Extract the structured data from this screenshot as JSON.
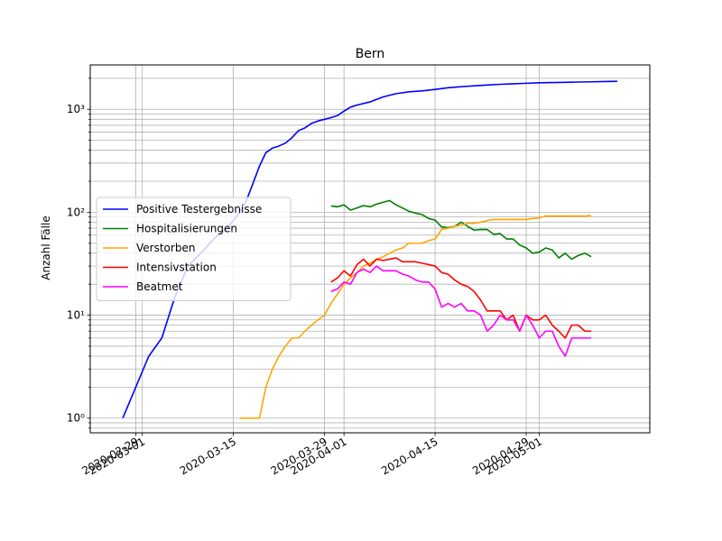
{
  "chart_data": {
    "type": "line",
    "title": "Bern",
    "xlabel": "",
    "ylabel": "Anzahl Fälle",
    "yscale": "log",
    "ylim": [
      0.72,
      2700
    ],
    "xlim": [
      "2020-02-22",
      "2020-05-18"
    ],
    "grid": true,
    "legend_position": "center-left",
    "x_ticks": [
      {
        "date": "2020-02-29",
        "label": "2020-02-29"
      },
      {
        "date": "2020-03-01",
        "label": "2020-03-01"
      },
      {
        "date": "2020-03-15",
        "label": "2020-03-15"
      },
      {
        "date": "2020-03-29",
        "label": "2020-03-29"
      },
      {
        "date": "2020-04-01",
        "label": "2020-04-01"
      },
      {
        "date": "2020-04-15",
        "label": "2020-04-15"
      },
      {
        "date": "2020-04-29",
        "label": "2020-04-29"
      },
      {
        "date": "2020-05-01",
        "label": "2020-05-01"
      }
    ],
    "y_ticks": [
      {
        "value": 1,
        "label": "10⁰"
      },
      {
        "value": 10,
        "label": "10¹"
      },
      {
        "value": 100,
        "label": "10²"
      },
      {
        "value": 1000,
        "label": "10³"
      }
    ],
    "series": [
      {
        "name": "Positive Testergebnisse",
        "color": "#0000ff",
        "x": [
          "2020-02-27",
          "2020-02-29",
          "2020-03-02",
          "2020-03-04",
          "2020-03-06",
          "2020-03-08",
          "2020-03-10",
          "2020-03-12",
          "2020-03-14",
          "2020-03-16",
          "2020-03-17",
          "2020-03-18",
          "2020-03-19",
          "2020-03-20",
          "2020-03-21",
          "2020-03-22",
          "2020-03-23",
          "2020-03-24",
          "2020-03-25",
          "2020-03-26",
          "2020-03-27",
          "2020-03-28",
          "2020-03-29",
          "2020-03-30",
          "2020-03-31",
          "2020-04-01",
          "2020-04-02",
          "2020-04-03",
          "2020-04-05",
          "2020-04-07",
          "2020-04-09",
          "2020-04-11",
          "2020-04-13",
          "2020-04-15",
          "2020-04-17",
          "2020-04-19",
          "2020-04-21",
          "2020-04-23",
          "2020-04-25",
          "2020-04-27",
          "2020-04-29",
          "2020-05-01",
          "2020-05-03",
          "2020-05-05",
          "2020-05-07",
          "2020-05-09",
          "2020-05-11",
          "2020-05-13"
        ],
        "values": [
          1,
          2,
          4,
          6,
          15,
          30,
          40,
          55,
          70,
          100,
          130,
          190,
          280,
          380,
          420,
          440,
          470,
          530,
          620,
          660,
          730,
          770,
          800,
          830,
          870,
          960,
          1050,
          1100,
          1180,
          1320,
          1420,
          1480,
          1510,
          1560,
          1620,
          1660,
          1690,
          1720,
          1750,
          1770,
          1790,
          1810,
          1820,
          1830,
          1840,
          1850,
          1860,
          1870
        ]
      },
      {
        "name": "Hospitalisierungen",
        "color": "#008000",
        "x": [
          "2020-03-30",
          "2020-03-31",
          "2020-04-01",
          "2020-04-02",
          "2020-04-03",
          "2020-04-04",
          "2020-04-05",
          "2020-04-06",
          "2020-04-07",
          "2020-04-08",
          "2020-04-09",
          "2020-04-10",
          "2020-04-11",
          "2020-04-12",
          "2020-04-13",
          "2020-04-14",
          "2020-04-15",
          "2020-04-16",
          "2020-04-17",
          "2020-04-18",
          "2020-04-19",
          "2020-04-20",
          "2020-04-21",
          "2020-04-22",
          "2020-04-23",
          "2020-04-24",
          "2020-04-25",
          "2020-04-26",
          "2020-04-27",
          "2020-04-28",
          "2020-04-29",
          "2020-04-30",
          "2020-05-01",
          "2020-05-02",
          "2020-05-03",
          "2020-05-04",
          "2020-05-05",
          "2020-05-06",
          "2020-05-07",
          "2020-05-08",
          "2020-05-09"
        ],
        "values": [
          115,
          113,
          118,
          105,
          110,
          116,
          113,
          120,
          125,
          130,
          118,
          110,
          102,
          98,
          95,
          87,
          84,
          72,
          71,
          73,
          80,
          73,
          67,
          68,
          68,
          61,
          62,
          55,
          55,
          48,
          45,
          40,
          41,
          45,
          43,
          36,
          40,
          35,
          38,
          40,
          37
        ]
      },
      {
        "name": "Verstorben",
        "color": "#ffa500",
        "x": [
          "2020-03-16",
          "2020-03-17",
          "2020-03-18",
          "2020-03-19",
          "2020-03-20",
          "2020-03-21",
          "2020-03-22",
          "2020-03-23",
          "2020-03-24",
          "2020-03-25",
          "2020-03-26",
          "2020-03-27",
          "2020-03-28",
          "2020-03-29",
          "2020-03-30",
          "2020-03-31",
          "2020-04-01",
          "2020-04-02",
          "2020-04-03",
          "2020-04-04",
          "2020-04-05",
          "2020-04-06",
          "2020-04-07",
          "2020-04-08",
          "2020-04-09",
          "2020-04-10",
          "2020-04-11",
          "2020-04-12",
          "2020-04-13",
          "2020-04-14",
          "2020-04-15",
          "2020-04-16",
          "2020-04-17",
          "2020-04-18",
          "2020-04-19",
          "2020-04-20",
          "2020-04-21",
          "2020-04-22",
          "2020-04-23",
          "2020-04-24",
          "2020-04-25",
          "2020-04-26",
          "2020-04-27",
          "2020-04-28",
          "2020-04-29",
          "2020-04-30",
          "2020-05-01",
          "2020-05-02",
          "2020-05-03",
          "2020-05-04",
          "2020-05-05",
          "2020-05-06",
          "2020-05-07",
          "2020-05-08",
          "2020-05-09"
        ],
        "values": [
          1,
          1,
          1,
          1,
          2,
          3,
          4,
          5,
          6,
          6,
          7,
          8,
          9,
          10,
          13,
          16,
          20,
          23,
          26,
          30,
          32,
          35,
          37,
          40,
          43,
          45,
          50,
          50,
          50,
          53,
          55,
          68,
          70,
          73,
          75,
          78,
          78,
          80,
          83,
          85,
          85,
          85,
          85,
          85,
          85,
          87,
          88,
          92,
          92,
          92,
          92,
          92,
          92,
          92,
          93
        ]
      },
      {
        "name": "Intensivstation",
        "color": "#ff0000",
        "x": [
          "2020-03-30",
          "2020-03-31",
          "2020-04-01",
          "2020-04-02",
          "2020-04-03",
          "2020-04-04",
          "2020-04-05",
          "2020-04-06",
          "2020-04-07",
          "2020-04-08",
          "2020-04-09",
          "2020-04-10",
          "2020-04-11",
          "2020-04-12",
          "2020-04-13",
          "2020-04-14",
          "2020-04-15",
          "2020-04-16",
          "2020-04-17",
          "2020-04-18",
          "2020-04-19",
          "2020-04-20",
          "2020-04-21",
          "2020-04-22",
          "2020-04-23",
          "2020-04-24",
          "2020-04-25",
          "2020-04-26",
          "2020-04-27",
          "2020-04-28",
          "2020-04-29",
          "2020-04-30",
          "2020-05-01",
          "2020-05-02",
          "2020-05-03",
          "2020-05-04",
          "2020-05-05",
          "2020-05-06",
          "2020-05-07",
          "2020-05-08",
          "2020-05-09"
        ],
        "values": [
          21,
          23,
          27,
          24,
          31,
          35,
          30,
          35,
          34,
          35,
          36,
          33,
          33,
          33,
          32,
          31,
          30,
          26,
          25,
          22,
          20,
          19,
          17,
          14,
          11,
          11,
          11,
          9,
          10,
          7,
          10,
          9,
          9,
          10,
          8,
          7,
          6,
          8,
          8,
          7,
          7
        ]
      },
      {
        "name": "Beatmet",
        "color": "#ff00ff",
        "x": [
          "2020-03-30",
          "2020-03-31",
          "2020-04-01",
          "2020-04-02",
          "2020-04-03",
          "2020-04-04",
          "2020-04-05",
          "2020-04-06",
          "2020-04-07",
          "2020-04-08",
          "2020-04-09",
          "2020-04-10",
          "2020-04-11",
          "2020-04-12",
          "2020-04-13",
          "2020-04-14",
          "2020-04-15",
          "2020-04-16",
          "2020-04-17",
          "2020-04-18",
          "2020-04-19",
          "2020-04-20",
          "2020-04-21",
          "2020-04-22",
          "2020-04-23",
          "2020-04-24",
          "2020-04-25",
          "2020-04-26",
          "2020-04-27",
          "2020-04-28",
          "2020-04-29",
          "2020-04-30",
          "2020-05-01",
          "2020-05-02",
          "2020-05-03",
          "2020-05-04",
          "2020-05-05",
          "2020-05-06",
          "2020-05-07",
          "2020-05-08",
          "2020-05-09"
        ],
        "values": [
          17,
          18,
          21,
          20,
          26,
          28,
          26,
          30,
          27,
          27,
          27,
          25,
          24,
          22,
          21,
          21,
          18,
          12,
          13,
          12,
          13,
          11,
          11,
          10,
          7,
          8,
          10,
          9,
          9,
          7,
          10,
          8,
          6,
          7,
          7,
          5,
          4,
          6,
          6,
          6,
          6
        ]
      }
    ]
  }
}
